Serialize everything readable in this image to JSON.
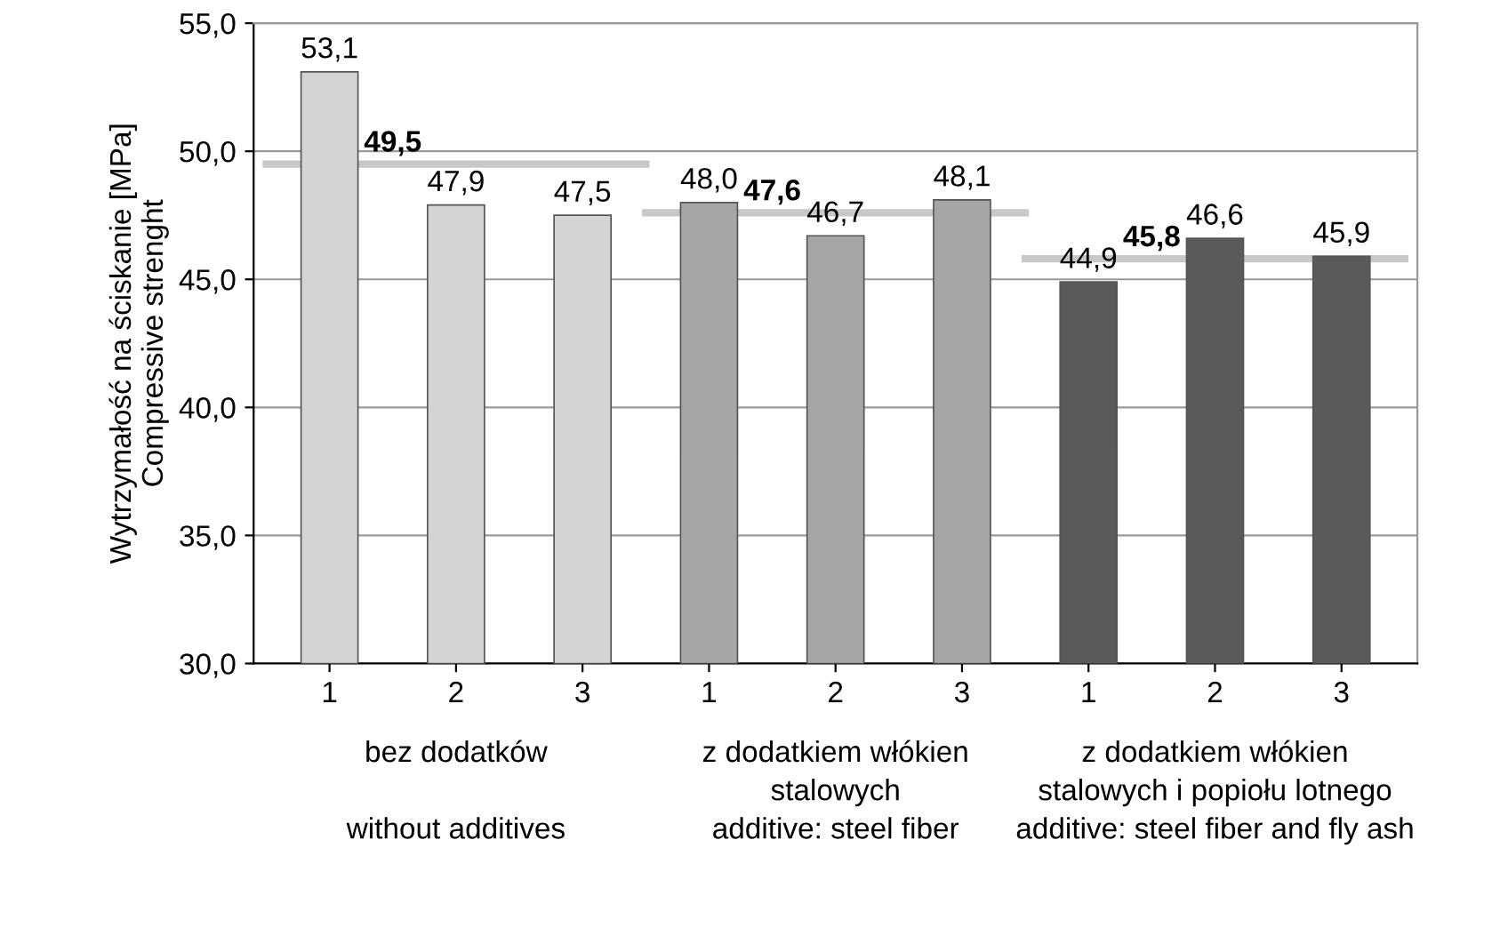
{
  "chart_data": {
    "type": "bar",
    "ylabel": "Wytrzymałość na ściskanie [MPa]\nCompressive strenght",
    "categories": [
      "1",
      "2",
      "3",
      "1",
      "2",
      "3",
      "1",
      "2",
      "3"
    ],
    "values": [
      53.1,
      47.9,
      47.5,
      48.0,
      46.7,
      48.1,
      44.9,
      46.6,
      45.9
    ],
    "value_labels": [
      "53,1",
      "47,9",
      "47,5",
      "48,0",
      "46,7",
      "48,1",
      "44,9",
      "46,6",
      "45,9"
    ],
    "colors": [
      "#d4d4d4",
      "#d4d4d4",
      "#d4d4d4",
      "#a6a6a6",
      "#a6a6a6",
      "#a6a6a6",
      "#5a5a5a",
      "#5a5a5a",
      "#5a5a5a"
    ],
    "ylim": [
      30,
      55
    ],
    "yticks": [
      {
        "value": 30,
        "label": "30,0"
      },
      {
        "value": 35,
        "label": "35,0"
      },
      {
        "value": 40,
        "label": "40,0"
      },
      {
        "value": 45,
        "label": "45,0"
      },
      {
        "value": 50,
        "label": "50,0"
      },
      {
        "value": 55,
        "label": "55,0"
      }
    ],
    "grid": "y",
    "ref_lines": [
      {
        "axis": "y",
        "value": 49.5,
        "label": "49,5",
        "color": "#c8c8c8"
      },
      {
        "axis": "y",
        "value": 47.6,
        "label": "47,6",
        "color": "#c8c8c8"
      },
      {
        "axis": "y",
        "value": 45.8,
        "label": "45,8",
        "color": "#c8c8c8"
      }
    ],
    "annotations": [
      "bez dodatków\n\nwithout additives",
      "z dodatkiem włókien\nstalowych\nadditive: steel fiber",
      "z dodatkiem włókien\nstalowych i popiołu lotnego\nadditive: steel fiber and fly ash"
    ]
  }
}
